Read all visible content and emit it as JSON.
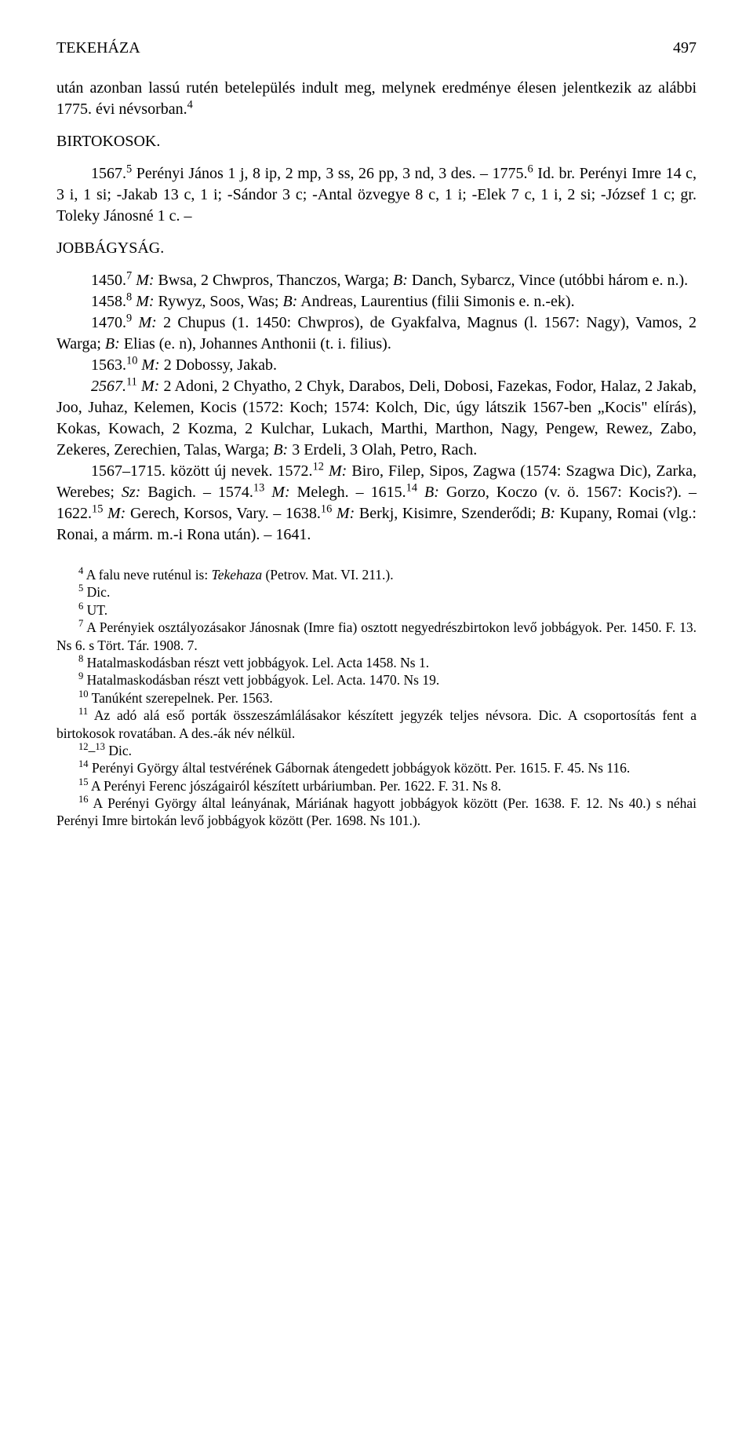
{
  "header": {
    "title": "TEKEHÁZA",
    "page": "497"
  },
  "intro": {
    "p1": "után azonban lassú rutén betelepülés indult meg, melynek eredménye élesen jelentkezik az alábbi 1775. évi névsorban.",
    "sup1": "4"
  },
  "birtokosok": {
    "title": "BIRTOKOSOK.",
    "p1a": "1567.",
    "sup5": "5",
    "p1b": " Perényi János 1 j, 8 ip, 2 mp, 3 ss, 26 pp, 3 nd, 3 des. – 1775.",
    "sup6": "6",
    "p1c": " Id. br. Perényi Imre 14 c, 3 i, 1 si; -Jakab 13 c, 1 i; -Sándor 3 c; -Antal özvegye 8 c, 1 i; -Elek 7 c, 1 i, 2 si; -József 1 c; gr. Toleky Jánosné 1 c. –"
  },
  "jobbagysag": {
    "title": "JOBBÁGYSÁG.",
    "e1450a": "1450.",
    "sup7": "7",
    "e1450b": " M:",
    "e1450c": " Bwsa, 2 Chwpros, Thanczos, Warga; ",
    "e1450d": "B:",
    "e1450e": " Danch, Sybarcz, Vince (utóbbi három e. n.).",
    "e1458a": "1458.",
    "sup8": "8",
    "e1458b": " M:",
    "e1458c": " Rywyz, Soos, Was; ",
    "e1458d": "B:",
    "e1458e": " Andreas, Laurentius (filii Simonis e. n.-ek).",
    "e1470a": "1470.",
    "sup9": "9",
    "e1470b": " M:",
    "e1470c": " 2 Chupus (1. 1450: Chwpros), de Gyakfalva, Magnus (l. 1567: Nagy), Vamos, 2 Warga; ",
    "e1470d": "B:",
    "e1470e": " Elias (e. n), Johannes Anthonii (t. i. filius).",
    "e1563a": "1563.",
    "sup10": "10",
    "e1563b": " M:",
    "e1563c": " 2 Dobossy, Jakab.",
    "e2567a": "2567.",
    "sup11": "11",
    "e2567b": " M:",
    "e2567c": " 2 Adoni, 2 Chyatho, 2 Chyk, Darabos, Deli, Dobosi, Fazekas, Fodor, Halaz, 2 Jakab, Joo, Juhaz, Kelemen, Kocis (1572: Koch; 1574: Kolch, Dic, úgy látszik 1567-ben „Kocis\" elírás), Kokas, Kowach, 2 Kozma, 2 Kulchar, Lukach, Marthi, Marthon, Nagy, Pengew, Rewez, Zabo, Zekeres, Zerechien, Talas, Warga; ",
    "e2567d": "B:",
    "e2567e": " 3 Erdeli, 3 Olah, Petro, Rach.",
    "e1567a": "1567–1715. között új nevek. 1572.",
    "sup12": "12",
    "e1567b": " M:",
    "e1567c": " Biro, Filep, Sipos, Zagwa (1574: Szagwa Dic), Zarka, Werebes; ",
    "e1567d": "Sz:",
    "e1567e": " Bagich. – 1574.",
    "sup13": "13",
    "e1567f": " M:",
    "e1567g": " Melegh. – 1615.",
    "sup14": "14",
    "e1567h": " B:",
    "e1567i": " Gorzo, Koczo (v. ö. 1567: Kocis?). – 1622.",
    "sup15": "15",
    "e1567j": " M:",
    "e1567k": " Gerech, Korsos, Vary. – 1638.",
    "sup16": "16",
    "e1567l": " M:",
    "e1567m": " Berkj, Kisimre, Szenderődi; ",
    "e1567n": "B:",
    "e1567o": " Kupany, Romai (vlg.: Ronai, a márm. m.-i Rona után). – 1641."
  },
  "footnotes": {
    "f4": " A falu neve ruténul is: ",
    "f4i": "Tekehaza",
    "f4b": " (Petrov. Mat. VI. 211.).",
    "f5": " Dic.",
    "f6": " UT.",
    "f7": " A Perényiek osztályozásakor Jánosnak (Imre fia) osztott negyedrészbirtokon levő jobbágyok. Per. 1450. F. 13. Ns 6. s Tört. Tár. 1908. 7.",
    "f8": " Hatalmaskodásban részt vett jobbágyok. Lel. Acta 1458. Ns 1.",
    "f9": " Hatalmaskodásban részt vett jobbágyok. Lel. Acta. 1470. Ns 19.",
    "f10": " Tanúként szerepelnek. Per. 1563.",
    "f11": " Az adó alá eső porták összeszámlálásakor készített jegyzék teljes névsora. Dic. A csoportosítás fent a birtokosok rovatában. A des.-ák név nélkül.",
    "f12_13": " Dic.",
    "f14": " Perényi György által testvérének Gábornak átengedett jobbágyok között. Per. 1615. F. 45. Ns 116.",
    "f15": " A Perényi Ferenc jószágairól készített urbáriumban. Per. 1622. F. 31. Ns 8.",
    "f16": " A Perényi György által leányának, Máriának hagyott jobbágyok között (Per. 1638. F. 12. Ns 40.) s néhai Perényi Imre birtokán levő jobbágyok között (Per. 1698. Ns 101.)."
  }
}
